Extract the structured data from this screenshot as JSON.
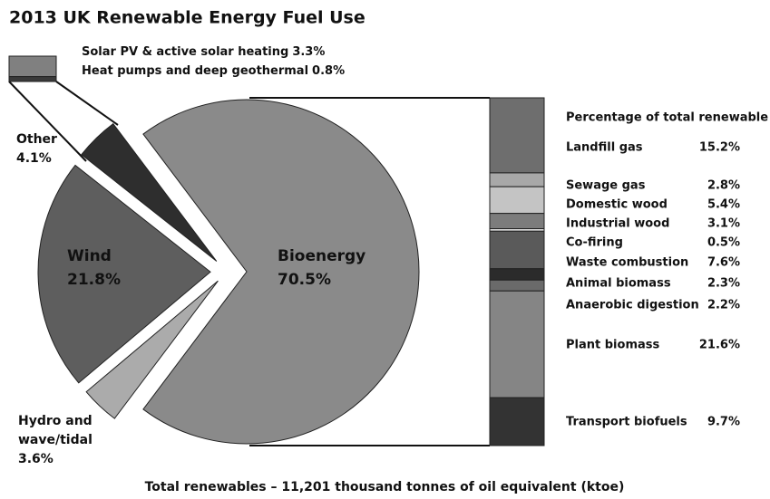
{
  "chart_data": [
    {
      "type": "pie",
      "title": "2013 UK Renewable Energy Fuel Use",
      "footnote": "Total renewables – 11,201 thousand tonnes of oil equivalent (ktoe)",
      "categories": [
        "Bioenergy",
        "Hydro and wave/tidal",
        "Wind",
        "Other"
      ],
      "values": [
        70.5,
        3.6,
        21.8,
        4.1
      ],
      "value_labels": [
        "70.5%",
        "3.6%",
        "21.8%",
        "4.1%"
      ],
      "colors": [
        "#8a8a8a",
        "#ababab",
        "#5e5e5e",
        "#2e2e2e"
      ]
    },
    {
      "type": "bar",
      "stacked": true,
      "title": "Percentage of total renewable",
      "categories": [
        "Landfill gas",
        "Sewage gas",
        "Domestic wood",
        "Industrial wood",
        "Co-firing",
        "Waste combustion",
        "Animal biomass",
        "Anaerobic digestion",
        "Plant biomass",
        "Transport biofuels"
      ],
      "values": [
        15.2,
        2.8,
        5.4,
        3.1,
        0.5,
        7.6,
        2.3,
        2.2,
        21.6,
        9.7
      ],
      "value_labels": [
        "15.2%",
        "2.8%",
        "5.4%",
        "3.1%",
        "0.5%",
        "7.6%",
        "2.3%",
        "2.2%",
        "21.6%",
        "9.7%"
      ],
      "colors": [
        "#6e6e6e",
        "#a8a8a8",
        "#c4c4c4",
        "#7c7c7c",
        "#e2e2e2",
        "#5a5a5a",
        "#2b2b2b",
        "#6a6a6a",
        "#858585",
        "#333333"
      ]
    },
    {
      "type": "bar",
      "stacked": true,
      "categories": [
        "Solar PV & active solar heating",
        "Heat pumps and deep geothermal"
      ],
      "values": [
        3.3,
        0.8
      ],
      "value_labels": [
        "3.3%",
        "0.8%"
      ],
      "colors": [
        "#808080",
        "#3a3a3a"
      ]
    }
  ]
}
